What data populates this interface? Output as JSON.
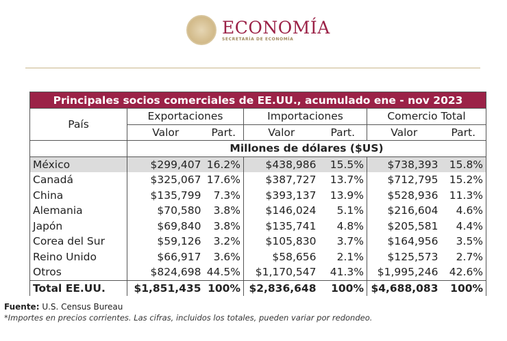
{
  "header": {
    "brand": "ECONOMÍA",
    "subtitle": "SECRETARÍA DE ECONOMÍA"
  },
  "table": {
    "title": "Principales socios comerciales de EE.UU., acumulado ene - nov 2023",
    "country_header": "País",
    "groups": [
      "Exportaciones",
      "Importaciones",
      "Comercio Total"
    ],
    "sub": [
      "Valor",
      "Part."
    ],
    "units": "Millones de dólares ($US)",
    "rows": [
      {
        "country": "México",
        "vals": [
          "$299,407",
          "16.2%",
          "$438,986",
          "15.5%",
          "$738,393",
          "15.8%"
        ]
      },
      {
        "country": "Canadá",
        "vals": [
          "$325,067",
          "17.6%",
          "$387,727",
          "13.7%",
          "$712,795",
          "15.2%"
        ]
      },
      {
        "country": "China",
        "vals": [
          "$135,799",
          "7.3%",
          "$393,137",
          "13.9%",
          "$528,936",
          "11.3%"
        ]
      },
      {
        "country": "Alemania",
        "vals": [
          "$70,580",
          "3.8%",
          "$146,024",
          "5.1%",
          "$216,604",
          "4.6%"
        ]
      },
      {
        "country": "Japón",
        "vals": [
          "$69,840",
          "3.8%",
          "$135,741",
          "4.8%",
          "$205,581",
          "4.4%"
        ]
      },
      {
        "country": "Corea del Sur",
        "vals": [
          "$59,126",
          "3.2%",
          "$105,830",
          "3.7%",
          "$164,956",
          "3.5%"
        ]
      },
      {
        "country": "Reino Unido",
        "vals": [
          "$66,917",
          "3.6%",
          "$58,656",
          "2.1%",
          "$125,573",
          "2.7%"
        ]
      },
      {
        "country": "Otros",
        "vals": [
          "$824,698",
          "44.5%",
          "$1,170,547",
          "41.3%",
          "$1,995,246",
          "42.6%"
        ]
      }
    ],
    "total": {
      "country": "Total EE.UU.",
      "vals": [
        "$1,851,435",
        "100%",
        "$2,836,648",
        "100%",
        "$4,688,083",
        "100%"
      ]
    }
  },
  "footer": {
    "source_label": "Fuente:",
    "source": "U.S. Census Bureau",
    "note": "*Importes en precios corrientes. Las cifras, incluidos los totales, pueden variar por redondeo."
  },
  "colors": {
    "accent": "#9b2247",
    "highlight": "#dcdcdc"
  }
}
